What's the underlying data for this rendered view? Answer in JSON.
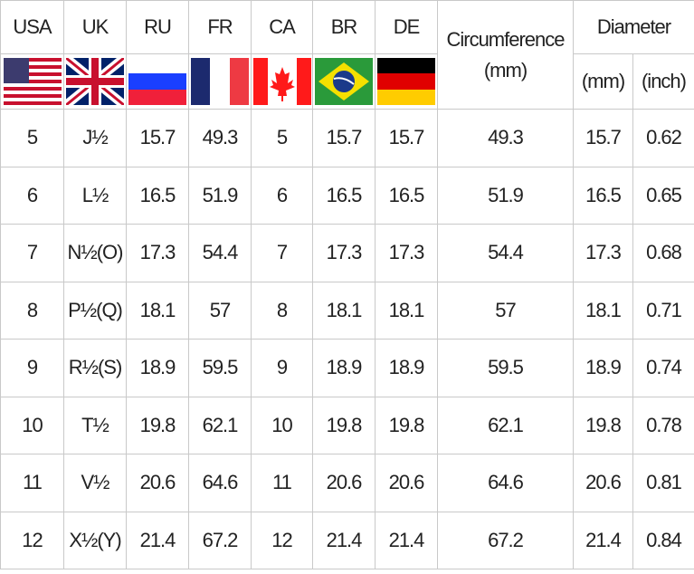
{
  "headers": {
    "countries": [
      "USA",
      "UK",
      "RU",
      "FR",
      "CA",
      "BR",
      "DE"
    ],
    "circumference_line1": "Circumference",
    "circumference_line2": "(mm)",
    "diameter": "Diameter",
    "diameter_mm": "(mm)",
    "diameter_inch": "(inch)"
  },
  "flags": [
    "us-flag-icon",
    "uk-flag-icon",
    "russia-flag-icon",
    "france-flag-icon",
    "canada-flag-icon",
    "brazil-flag-icon",
    "germany-flag-icon"
  ],
  "rows": [
    [
      "5",
      "J½",
      "15.7",
      "49.3",
      "5",
      "15.7",
      "15.7",
      "49.3",
      "15.7",
      "0.62"
    ],
    [
      "6",
      "L½",
      "16.5",
      "51.9",
      "6",
      "16.5",
      "16.5",
      "51.9",
      "16.5",
      "0.65"
    ],
    [
      "7",
      "N½(O)",
      "17.3",
      "54.4",
      "7",
      "17.3",
      "17.3",
      "54.4",
      "17.3",
      "0.68"
    ],
    [
      "8",
      "P½(Q)",
      "18.1",
      "57",
      "8",
      "18.1",
      "18.1",
      "57",
      "18.1",
      "0.71"
    ],
    [
      "9",
      "R½(S)",
      "18.9",
      "59.5",
      "9",
      "18.9",
      "18.9",
      "59.5",
      "18.9",
      "0.74"
    ],
    [
      "10",
      "T½",
      "19.8",
      "62.1",
      "10",
      "19.8",
      "19.8",
      "62.1",
      "19.8",
      "0.78"
    ],
    [
      "11",
      "V½",
      "20.6",
      "64.6",
      "11",
      "20.6",
      "20.6",
      "64.6",
      "20.6",
      "0.81"
    ],
    [
      "12",
      "X½(Y)",
      "21.4",
      "67.2",
      "12",
      "21.4",
      "21.4",
      "67.2",
      "21.4",
      "0.84"
    ]
  ]
}
